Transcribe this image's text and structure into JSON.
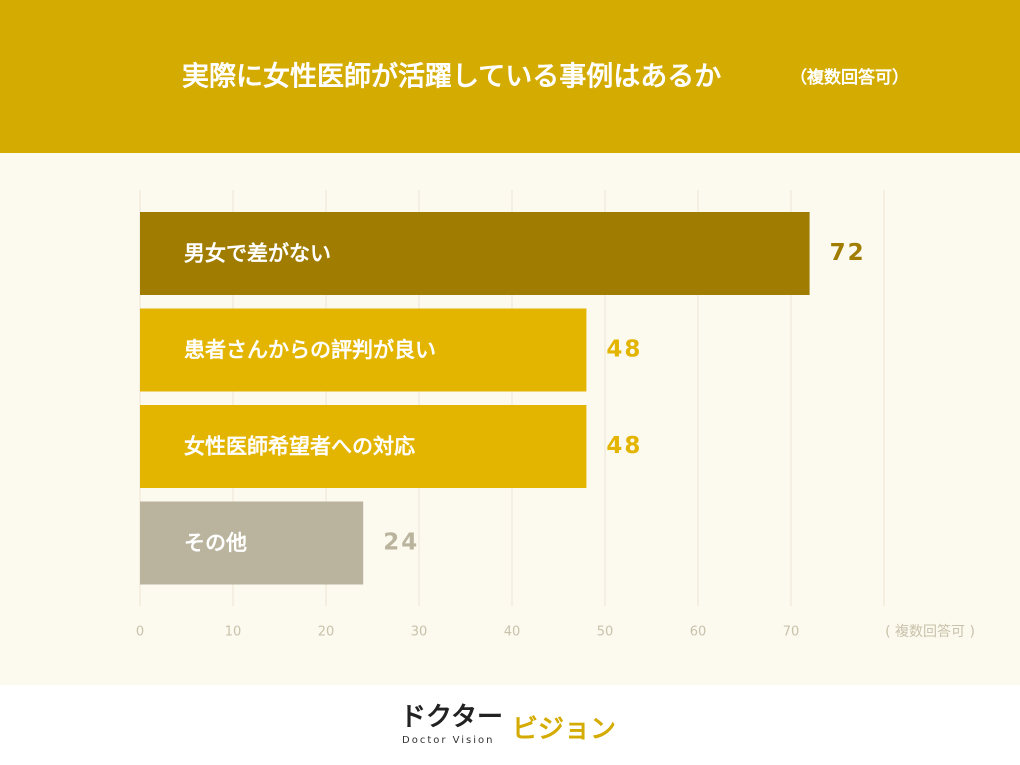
{
  "chart_data": {
    "type": "barh",
    "title": "実際に女性医師が活躍している事例はあるか",
    "subtitle": "（複数回答可）",
    "x_unit_label": "( 複数回答可 )",
    "categories": [
      "男女で差がない",
      "患者さんからの評判が良い",
      "女性医師希望者への対応",
      "その他"
    ],
    "values": [
      72,
      48,
      48,
      24
    ],
    "colors": [
      "#a07d00",
      "#e3b500",
      "#e3b500",
      "#bab49e"
    ],
    "xlim": [
      0,
      80
    ],
    "xticks": [
      0,
      10,
      20,
      30,
      40,
      50,
      60,
      70
    ],
    "grid": true
  },
  "logo": {
    "main": "ドクター",
    "sub": "Doctor Vision",
    "accent": "ビジョン"
  }
}
